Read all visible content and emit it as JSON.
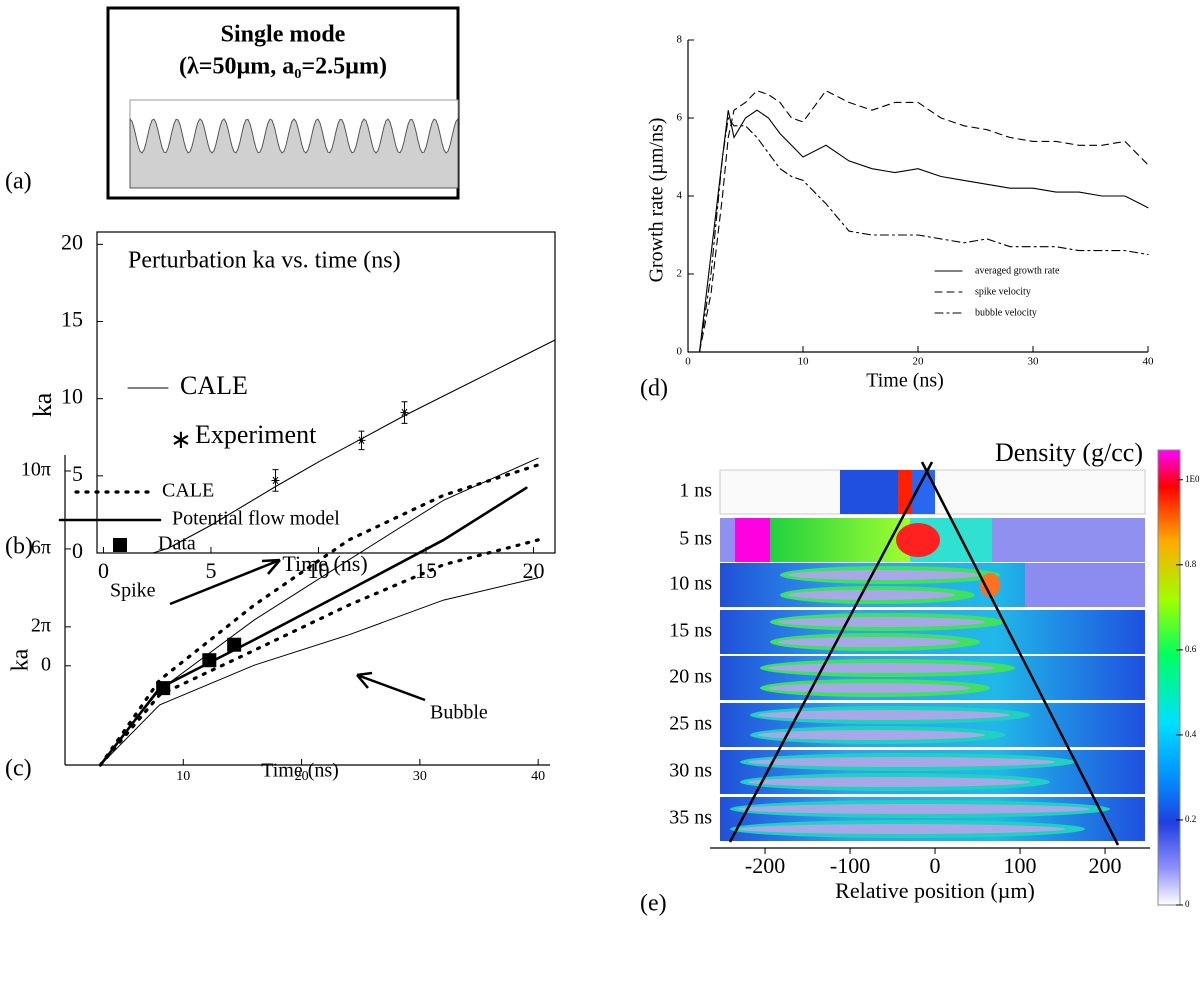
{
  "panel_a": {
    "title": "Single mode",
    "subtitle": "(λ=50µm, a₀=2.5µm)",
    "panel_label": "(a)"
  },
  "chart_data": [
    {
      "type": "line",
      "panel_label": "(b)",
      "title": "Perturbation ka vs. time (ns)",
      "x_label": "Time (ns)",
      "y_label": "ka",
      "xlim": [
        -0.3,
        21
      ],
      "ylim": [
        0,
        20.8
      ],
      "xticks": [
        0,
        5,
        10,
        15,
        20
      ],
      "yticks": [
        0,
        5,
        10,
        15,
        20
      ],
      "color": "#000000",
      "series": [
        {
          "name": "CALE",
          "style": "solid",
          "x": [
            2.3,
            3,
            5,
            8,
            10,
            12,
            14,
            16,
            18,
            21
          ],
          "values": [
            0,
            0.3,
            1.8,
            4.3,
            5.9,
            7.4,
            8.9,
            10.3,
            11.7,
            13.8
          ]
        },
        {
          "name": "Experiment",
          "style": "marker",
          "x": [
            8,
            12,
            14
          ],
          "values": [
            4.7,
            7.3,
            9.1
          ],
          "errors": [
            0.7,
            0.6,
            0.7
          ]
        }
      ]
    },
    {
      "type": "line",
      "panel_label": "(c)",
      "x_label": "Time (ns)",
      "y_label": "ka",
      "xlim": [
        0,
        41
      ],
      "ylim": [
        -16,
        34
      ],
      "xticks": [
        10,
        20,
        30,
        40
      ],
      "yticks": [
        0,
        {
          "value": 6.283,
          "label": "2π"
        },
        {
          "value": 18.85,
          "label": "6π"
        },
        {
          "value": 31.42,
          "label": "10π"
        }
      ],
      "color": "#000000",
      "series": [
        {
          "name": "CALE",
          "style": "dotted",
          "x": [
            3,
            8,
            16,
            24,
            32,
            40
          ],
          "values": [
            -16,
            -2.3,
            9.8,
            20.3,
            27.5,
            32.4
          ],
          "lower": [
            -16,
            -4.7,
            2.5,
            9.8,
            16.3,
            20.3
          ]
        },
        {
          "name": "Potential flow model",
          "style": "solid",
          "x": [
            3,
            8,
            16,
            24,
            32,
            39
          ],
          "values": [
            -16,
            -3.6,
            4.2,
            12.2,
            20.3,
            28.7
          ]
        },
        {
          "name": "Data",
          "style": "marker",
          "x": [
            8.3,
            12.2,
            14.3
          ],
          "values": [
            -3.6,
            0.9,
            3.4
          ]
        },
        {
          "name": "Spike",
          "style": "thin",
          "x": [
            3,
            8,
            16,
            24,
            32,
            40
          ],
          "values": [
            -16,
            -3.9,
            7.4,
            17.1,
            26.7,
            33.5
          ]
        },
        {
          "name": "Bubble",
          "style": "thin",
          "x": [
            3,
            8,
            16,
            24,
            32,
            40
          ],
          "values": [
            -16,
            -6.3,
            0.1,
            5,
            10.6,
            14.2
          ]
        }
      ]
    },
    {
      "type": "line",
      "panel_label": "(d)",
      "x_label": "Time (ns)",
      "y_label": "Growth rate (µm/ns)",
      "xlim": [
        0,
        40
      ],
      "ylim": [
        0,
        8
      ],
      "xticks": [
        0,
        10,
        20,
        30,
        40
      ],
      "yticks": [
        0,
        2,
        4,
        6,
        8
      ],
      "color": "#000000",
      "series": [
        {
          "name": "averaged growth rate",
          "style": "solid",
          "x": [
            0,
            1,
            2,
            3,
            3.5,
            4,
            5,
            6,
            7,
            8,
            9,
            10,
            12,
            14,
            16,
            18,
            20,
            22,
            24,
            26,
            28,
            30,
            32,
            34,
            36,
            38,
            40
          ],
          "values": [
            0,
            0,
            2.5,
            5,
            6.2,
            5.5,
            6,
            6.2,
            6,
            5.6,
            5.3,
            5,
            5.3,
            4.9,
            4.7,
            4.6,
            4.7,
            4.5,
            4.4,
            4.3,
            4.2,
            4.2,
            4.1,
            4.1,
            4.0,
            4.0,
            3.7
          ]
        },
        {
          "name": "spike velocity",
          "style": "dashed",
          "x": [
            0,
            1,
            2,
            3,
            3.5,
            4,
            5,
            6,
            7,
            8,
            9,
            10,
            12,
            14,
            16,
            18,
            20,
            22,
            24,
            26,
            28,
            30,
            32,
            34,
            36,
            38,
            40
          ],
          "values": [
            0,
            0,
            1.5,
            4,
            5.5,
            6.2,
            6.4,
            6.7,
            6.6,
            6.4,
            6.0,
            5.9,
            6.7,
            6.4,
            6.2,
            6.4,
            6.4,
            6.0,
            5.8,
            5.7,
            5.5,
            5.4,
            5.4,
            5.3,
            5.3,
            5.4,
            4.8
          ]
        },
        {
          "name": "bubble velocity",
          "style": "dashdot",
          "x": [
            0,
            1,
            2,
            3,
            3.5,
            4,
            5,
            6,
            7,
            8,
            9,
            10,
            12,
            14,
            16,
            18,
            20,
            22,
            24,
            26,
            28,
            30,
            32,
            34,
            36,
            38,
            40
          ],
          "values": [
            0,
            0,
            2,
            5,
            6,
            5.8,
            5.8,
            5.5,
            5.1,
            4.7,
            4.5,
            4.4,
            3.8,
            3.1,
            3.0,
            3.0,
            3.0,
            2.9,
            2.8,
            2.9,
            2.7,
            2.7,
            2.7,
            2.6,
            2.6,
            2.6,
            2.5
          ]
        }
      ]
    },
    {
      "type": "image",
      "panel_label": "(e)",
      "title": "Density (g/cc)",
      "x_label": "Relative position (µm)",
      "xlim": [
        -253,
        247
      ],
      "xticks": [
        -200,
        -100,
        0,
        100,
        200
      ],
      "row_labels": [
        "1 ns",
        "5 ns",
        "10 ns",
        "15 ns",
        "20 ns",
        "25 ns",
        "30 ns",
        "35 ns"
      ],
      "colorbar": {
        "lim": [
          0,
          1.07
        ],
        "ticks": [
          0,
          0.2,
          0.4,
          0.6,
          0.8,
          {
            "value": 1,
            "label": "1E0"
          }
        ]
      }
    }
  ]
}
